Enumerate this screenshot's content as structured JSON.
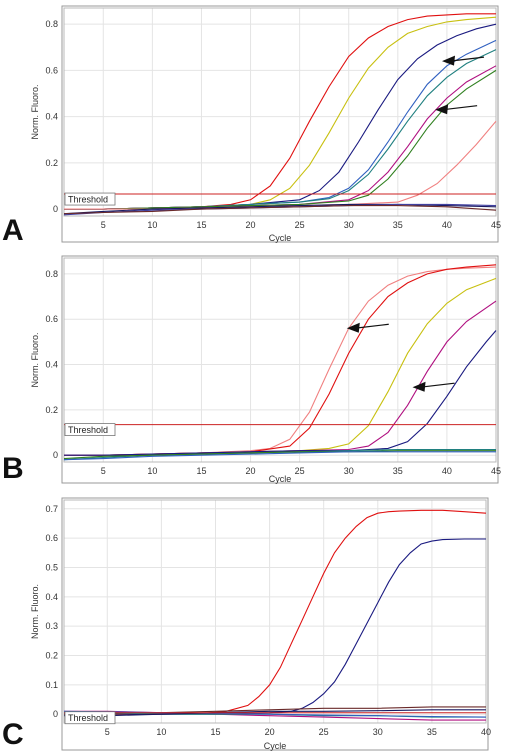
{
  "chart_data": [
    {
      "panel_label": "A",
      "type": "line",
      "xlabel": "Cycle",
      "ylabel": "Norm. Fluoro.",
      "xlim": [
        1,
        45
      ],
      "ylim": [
        -0.03,
        0.87
      ],
      "xticks": [
        5,
        10,
        15,
        20,
        25,
        30,
        35,
        40,
        45
      ],
      "yticks": [
        0,
        0.2,
        0.4,
        0.6,
        0.8
      ],
      "ytick_labels": [
        "0",
        "0.2",
        "0.4",
        "0.6",
        "0.8"
      ],
      "grid": true,
      "threshold": {
        "label": "Threshold",
        "value": 0.065,
        "color": "#cc2222"
      },
      "annotations": [
        {
          "type": "arrow",
          "pointing_at": {
            "x": 39.5,
            "y": 0.64
          }
        },
        {
          "type": "arrow",
          "pointing_at": {
            "x": 38.8,
            "y": 0.43
          }
        }
      ],
      "series": [
        {
          "color": "#e01010",
          "x": [
            1,
            5,
            10,
            15,
            18,
            20,
            22,
            24,
            26,
            28,
            30,
            32,
            34,
            36,
            38,
            40,
            42,
            45
          ],
          "y": [
            0,
            0,
            0.005,
            0.01,
            0.02,
            0.04,
            0.1,
            0.22,
            0.38,
            0.53,
            0.66,
            0.74,
            0.79,
            0.82,
            0.835,
            0.84,
            0.845,
            0.845
          ]
        },
        {
          "color": "#c8c010",
          "x": [
            1,
            5,
            10,
            15,
            20,
            22,
            24,
            26,
            28,
            30,
            32,
            34,
            36,
            38,
            40,
            42,
            45
          ],
          "y": [
            0,
            0,
            0.005,
            0.01,
            0.02,
            0.04,
            0.09,
            0.19,
            0.33,
            0.48,
            0.61,
            0.7,
            0.76,
            0.79,
            0.81,
            0.82,
            0.83
          ]
        },
        {
          "color": "#1a1a80",
          "x": [
            1,
            5,
            10,
            15,
            20,
            25,
            27,
            29,
            31,
            33,
            35,
            37,
            39,
            41,
            43,
            45
          ],
          "y": [
            0,
            0,
            0.005,
            0.01,
            0.02,
            0.04,
            0.08,
            0.16,
            0.29,
            0.43,
            0.56,
            0.65,
            0.71,
            0.75,
            0.78,
            0.8
          ]
        },
        {
          "color": "#3060c0",
          "x": [
            1,
            5,
            10,
            15,
            20,
            25,
            28,
            30,
            32,
            34,
            36,
            38,
            40,
            42,
            45
          ],
          "y": [
            0,
            0,
            0.005,
            0.01,
            0.02,
            0.03,
            0.05,
            0.09,
            0.17,
            0.29,
            0.42,
            0.54,
            0.62,
            0.67,
            0.73
          ]
        },
        {
          "color": "#208080",
          "x": [
            1,
            5,
            10,
            15,
            20,
            25,
            28,
            30,
            32,
            34,
            36,
            38,
            40,
            42,
            45
          ],
          "y": [
            0,
            0,
            0.005,
            0.01,
            0.02,
            0.03,
            0.045,
            0.08,
            0.15,
            0.26,
            0.38,
            0.49,
            0.57,
            0.63,
            0.69
          ]
        },
        {
          "color": "#b01080",
          "x": [
            1,
            5,
            10,
            15,
            20,
            25,
            30,
            32,
            34,
            36,
            38,
            40,
            42,
            45
          ],
          "y": [
            0,
            0,
            0.005,
            0.01,
            0.015,
            0.02,
            0.04,
            0.08,
            0.16,
            0.27,
            0.39,
            0.48,
            0.55,
            0.62
          ]
        },
        {
          "color": "#308020",
          "x": [
            1,
            5,
            10,
            15,
            20,
            25,
            30,
            32,
            34,
            36,
            38,
            40,
            42,
            45
          ],
          "y": [
            0,
            0,
            0.005,
            0.01,
            0.015,
            0.02,
            0.035,
            0.06,
            0.13,
            0.23,
            0.35,
            0.45,
            0.52,
            0.6
          ]
        },
        {
          "color": "#f08080",
          "x": [
            1,
            5,
            10,
            15,
            20,
            25,
            30,
            35,
            37,
            39,
            41,
            43,
            45
          ],
          "y": [
            0,
            0,
            0,
            0.005,
            0.01,
            0.015,
            0.02,
            0.03,
            0.06,
            0.11,
            0.19,
            0.28,
            0.38
          ]
        },
        {
          "color": "#1a1a60",
          "x": [
            1,
            5,
            10,
            15,
            20,
            25,
            30,
            35,
            40,
            45
          ],
          "y": [
            -0.02,
            -0.01,
            0,
            0.005,
            0.01,
            0.015,
            0.02,
            0.02,
            0.015,
            0.01
          ]
        },
        {
          "color": "#4040a0",
          "x": [
            1,
            5,
            10,
            15,
            20,
            25,
            30,
            35,
            40,
            45
          ],
          "y": [
            -0.025,
            -0.015,
            -0.005,
            0,
            0.005,
            0.01,
            0.015,
            0.02,
            0.02,
            0.015
          ]
        },
        {
          "color": "#6a2a2a",
          "x": [
            1,
            5,
            10,
            15,
            20,
            25,
            30,
            35,
            40,
            45
          ],
          "y": [
            -0.02,
            -0.015,
            -0.01,
            0,
            0.005,
            0.01,
            0.015,
            0.015,
            0.01,
            -0.005
          ]
        }
      ]
    },
    {
      "panel_label": "B",
      "type": "line",
      "xlabel": "Cycle",
      "ylabel": "Norm. Fluoro.",
      "xlim": [
        1,
        45
      ],
      "ylim": [
        -0.03,
        0.87
      ],
      "xticks": [
        5,
        10,
        15,
        20,
        25,
        30,
        35,
        40,
        45
      ],
      "yticks": [
        0,
        0.2,
        0.4,
        0.6,
        0.8
      ],
      "ytick_labels": [
        "0",
        "0.2",
        "0.4",
        "0.6",
        "0.8"
      ],
      "grid": true,
      "threshold": {
        "label": "Threshold",
        "value": 0.135,
        "color": "#cc2222"
      },
      "annotations": [
        {
          "type": "arrow",
          "pointing_at": {
            "x": 29.8,
            "y": 0.56
          }
        },
        {
          "type": "arrow",
          "pointing_at": {
            "x": 36.5,
            "y": 0.3
          }
        }
      ],
      "series": [
        {
          "color": "#f08080",
          "x": [
            1,
            5,
            10,
            15,
            20,
            22,
            24,
            26,
            28,
            30,
            32,
            34,
            36,
            38,
            40,
            42,
            45
          ],
          "y": [
            0,
            0,
            0.005,
            0.01,
            0.02,
            0.03,
            0.07,
            0.19,
            0.38,
            0.56,
            0.68,
            0.75,
            0.79,
            0.81,
            0.82,
            0.825,
            0.83
          ]
        },
        {
          "color": "#e01010",
          "x": [
            1,
            5,
            10,
            15,
            20,
            24,
            26,
            28,
            30,
            32,
            34,
            36,
            38,
            40,
            42,
            45
          ],
          "y": [
            0,
            0,
            0.005,
            0.01,
            0.015,
            0.04,
            0.12,
            0.27,
            0.45,
            0.6,
            0.7,
            0.76,
            0.8,
            0.82,
            0.83,
            0.84
          ]
        },
        {
          "color": "#c8c010",
          "x": [
            1,
            5,
            10,
            15,
            20,
            25,
            28,
            30,
            32,
            34,
            36,
            38,
            40,
            42,
            45
          ],
          "y": [
            0,
            0,
            0.005,
            0.01,
            0.015,
            0.02,
            0.03,
            0.05,
            0.13,
            0.28,
            0.45,
            0.58,
            0.67,
            0.73,
            0.78
          ]
        },
        {
          "color": "#b01080",
          "x": [
            1,
            5,
            10,
            15,
            20,
            25,
            30,
            32,
            34,
            36,
            38,
            40,
            42,
            45
          ],
          "y": [
            0,
            0,
            0.005,
            0.01,
            0.015,
            0.02,
            0.025,
            0.04,
            0.1,
            0.22,
            0.37,
            0.5,
            0.59,
            0.68
          ]
        },
        {
          "color": "#1a1a80",
          "x": [
            1,
            5,
            10,
            15,
            20,
            25,
            30,
            34,
            36,
            38,
            40,
            42,
            44,
            45
          ],
          "y": [
            0,
            0,
            0.005,
            0.01,
            0.015,
            0.02,
            0.02,
            0.03,
            0.06,
            0.14,
            0.26,
            0.39,
            0.5,
            0.55
          ]
        },
        {
          "color": "#208080",
          "x": [
            1,
            5,
            10,
            15,
            20,
            25,
            30,
            35,
            40,
            45
          ],
          "y": [
            -0.02,
            -0.01,
            0,
            0.005,
            0.01,
            0.015,
            0.02,
            0.025,
            0.025,
            0.025
          ]
        },
        {
          "color": "#308020",
          "x": [
            1,
            5,
            10,
            15,
            20,
            25,
            30,
            35,
            40,
            45
          ],
          "y": [
            -0.015,
            -0.005,
            0,
            0.005,
            0.01,
            0.015,
            0.015,
            0.02,
            0.02,
            0.02
          ]
        },
        {
          "color": "#3060c0",
          "x": [
            1,
            5,
            10,
            15,
            20,
            25,
            30,
            35,
            40,
            45
          ],
          "y": [
            -0.02,
            -0.015,
            -0.005,
            0,
            0.005,
            0.01,
            0.015,
            0.015,
            0.015,
            0.015
          ]
        }
      ]
    },
    {
      "panel_label": "C",
      "type": "line",
      "xlabel": "Cycle",
      "ylabel": "Norm. Fluoro.",
      "xlim": [
        1,
        40
      ],
      "ylim": [
        -0.03,
        0.73
      ],
      "xticks": [
        5,
        10,
        15,
        20,
        25,
        30,
        35,
        40
      ],
      "yticks": [
        0,
        0.1,
        0.2,
        0.3,
        0.4,
        0.5,
        0.6,
        0.7
      ],
      "ytick_labels": [
        "0",
        "0.1",
        "0.2",
        "0.3",
        "0.4",
        "0.5",
        "0.6",
        "0.7"
      ],
      "grid": true,
      "threshold": {
        "label": "Threshold",
        "value": 0.005,
        "color": "#cc2222"
      },
      "series": [
        {
          "color": "#e01010",
          "x": [
            1,
            5,
            10,
            14,
            16,
            18,
            19,
            20,
            21,
            22,
            23,
            24,
            25,
            26,
            27,
            28,
            29,
            30,
            31,
            32,
            34,
            36,
            38,
            40
          ],
          "y": [
            0,
            0,
            0,
            0.003,
            0.01,
            0.03,
            0.06,
            0.1,
            0.16,
            0.24,
            0.32,
            0.4,
            0.48,
            0.55,
            0.6,
            0.64,
            0.67,
            0.685,
            0.69,
            0.692,
            0.695,
            0.695,
            0.69,
            0.685
          ]
        },
        {
          "color": "#1a1a80",
          "x": [
            1,
            5,
            10,
            15,
            20,
            22,
            23,
            24,
            25,
            26,
            27,
            28,
            29,
            30,
            31,
            32,
            33,
            34,
            35,
            36,
            38,
            40
          ],
          "y": [
            0,
            0,
            0,
            0,
            0.005,
            0.01,
            0.02,
            0.04,
            0.07,
            0.11,
            0.17,
            0.24,
            0.31,
            0.38,
            0.45,
            0.51,
            0.55,
            0.58,
            0.59,
            0.595,
            0.597,
            0.597
          ]
        },
        {
          "color": "#b01080",
          "x": [
            1,
            5,
            10,
            15,
            20,
            25,
            30,
            35,
            40
          ],
          "y": [
            0.01,
            0.01,
            0.005,
            0,
            -0.005,
            -0.01,
            -0.015,
            -0.02,
            -0.02
          ]
        },
        {
          "color": "#6a2a2a",
          "x": [
            1,
            5,
            10,
            15,
            20,
            25,
            30,
            35,
            40
          ],
          "y": [
            0,
            0,
            0.005,
            0.01,
            0.015,
            0.02,
            0.02,
            0.025,
            0.025
          ]
        },
        {
          "color": "#208080",
          "x": [
            1,
            5,
            10,
            15,
            20,
            25,
            30,
            35,
            40
          ],
          "y": [
            0.005,
            0.005,
            0,
            0,
            0,
            -0.005,
            -0.005,
            -0.01,
            -0.01
          ]
        },
        {
          "color": "#3060c0",
          "x": [
            1,
            5,
            10,
            15,
            20,
            25,
            30,
            35,
            40
          ],
          "y": [
            0.01,
            0.008,
            0.005,
            0.003,
            0,
            -0.003,
            -0.005,
            -0.008,
            -0.01
          ]
        },
        {
          "color": "#1a1a60",
          "x": [
            1,
            5,
            10,
            15,
            20,
            25,
            30,
            35,
            40
          ],
          "y": [
            -0.005,
            -0.005,
            0,
            0.005,
            0.01,
            0.01,
            0.012,
            0.015,
            0.015
          ]
        }
      ]
    }
  ]
}
